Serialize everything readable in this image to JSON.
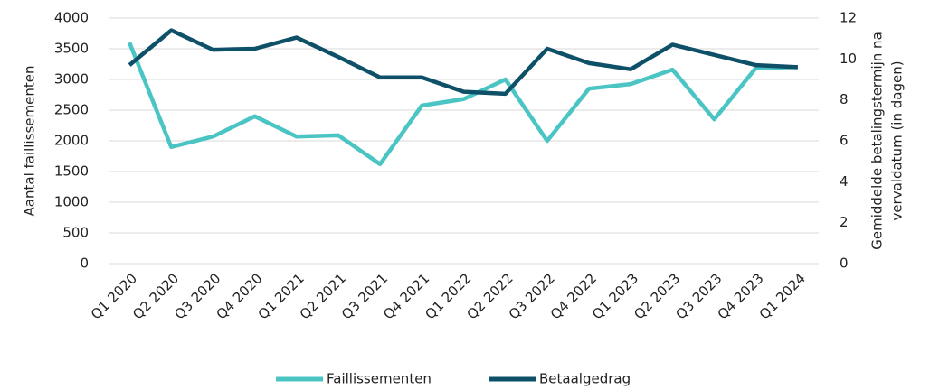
{
  "chart_data": {
    "type": "line",
    "categories": [
      "Q1 2020",
      "Q2 2020",
      "Q3 2020",
      "Q4 2020",
      "Q1 2021",
      "Q2 2021",
      "Q3 2021",
      "Q4 2021",
      "Q1 2022",
      "Q2 2022",
      "Q3 2022",
      "Q4 2022",
      "Q1 2023",
      "Q2 2023",
      "Q3 2023",
      "Q4 2023",
      "Q1 2024"
    ],
    "series": [
      {
        "name": "Faillissementen",
        "color": "#4bc4c4",
        "values": [
          3600,
          1900,
          2070,
          2400,
          2070,
          2090,
          1620,
          2575,
          2680,
          3000,
          2000,
          2850,
          2925,
          3160,
          2350,
          3190,
          3200
        ]
      },
      {
        "name": "Betaalgedrag",
        "color": "#0d5068",
        "axis": "y2",
        "values": [
          9.7,
          11.4,
          10.45,
          10.5,
          11.05,
          10.1,
          9.1,
          9.1,
          8.4,
          8.3,
          10.5,
          9.8,
          9.5,
          10.7,
          10.2,
          9.7,
          9.6
        ]
      }
    ],
    "ylabel": "Aantal faillissementen",
    "y2label": [
      "Gemiddelde betalingstermijn na",
      "vervaldatum (in dagen)"
    ],
    "ylim": [
      0,
      4000
    ],
    "yticks": [
      0,
      500,
      1000,
      1500,
      2000,
      2500,
      3000,
      3500,
      4000
    ],
    "y2lim": [
      0,
      12
    ],
    "y2ticks": [
      0,
      2,
      4,
      6,
      8,
      10,
      12
    ],
    "grid": true,
    "legend": "bottom"
  }
}
